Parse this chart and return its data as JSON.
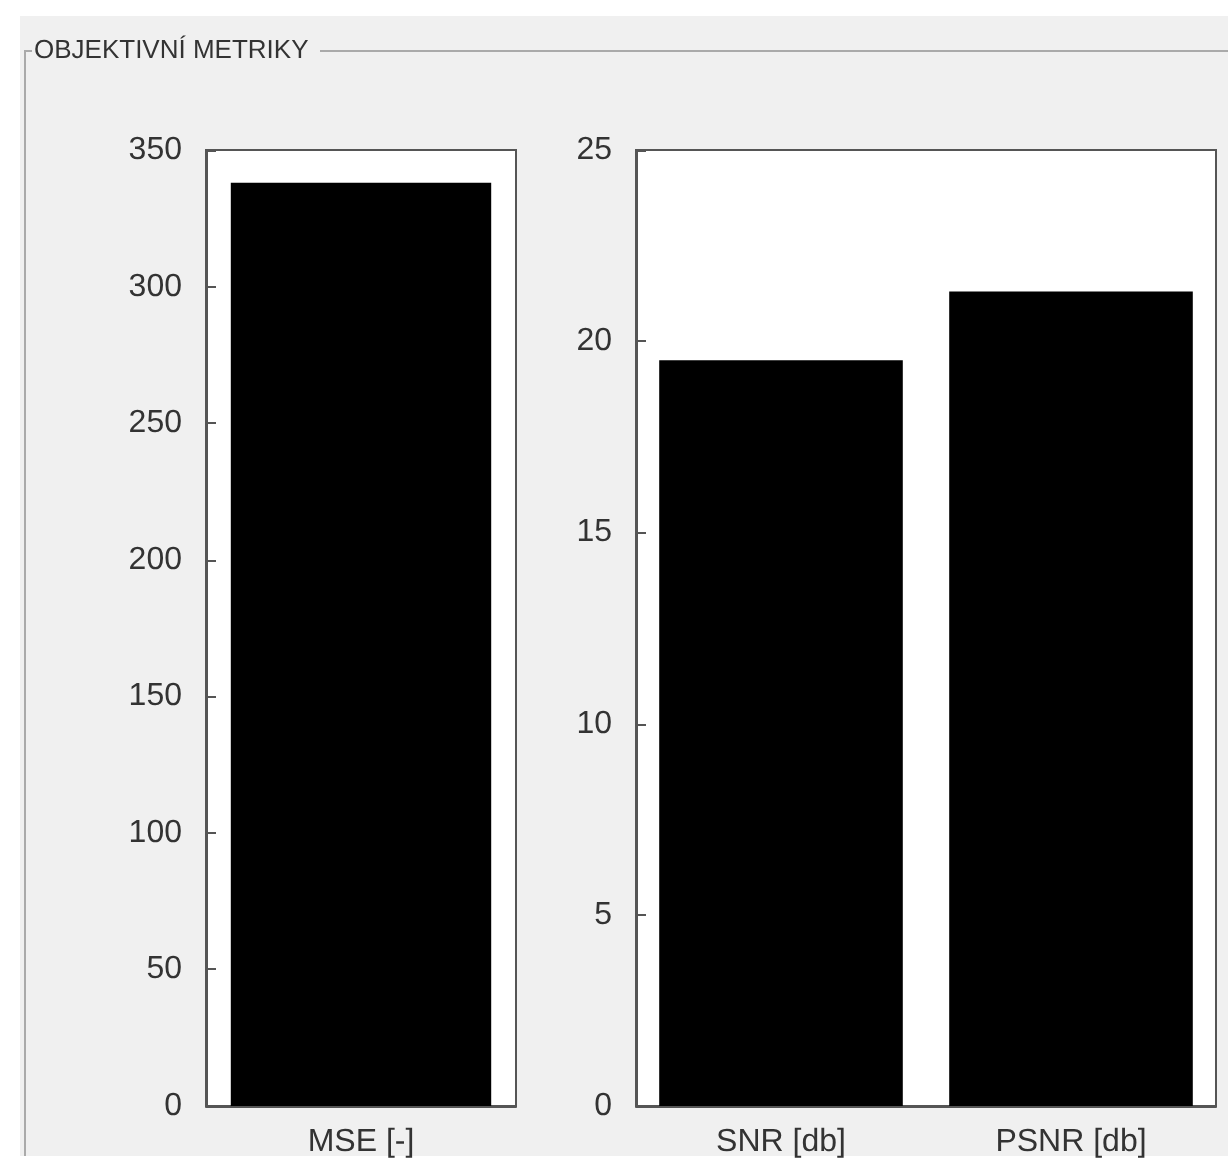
{
  "chart_data": [
    {
      "type": "bar",
      "title": "OBJEKTIVNÍ METRIKY",
      "categories": [
        "MSE [-]"
      ],
      "values": [
        338
      ],
      "color": "#000000",
      "ylim": [
        0,
        350
      ],
      "yticks": [
        0,
        50,
        100,
        150,
        200,
        250,
        300,
        350
      ],
      "grid": false
    },
    {
      "type": "bar",
      "categories": [
        "SNR [db]",
        "PSNR [db]"
      ],
      "values": [
        19.5,
        21.3
      ],
      "color": "#000000",
      "ylim": [
        0,
        25
      ],
      "yticks": [
        0,
        5,
        10,
        15,
        20,
        25
      ],
      "grid": false
    }
  ]
}
